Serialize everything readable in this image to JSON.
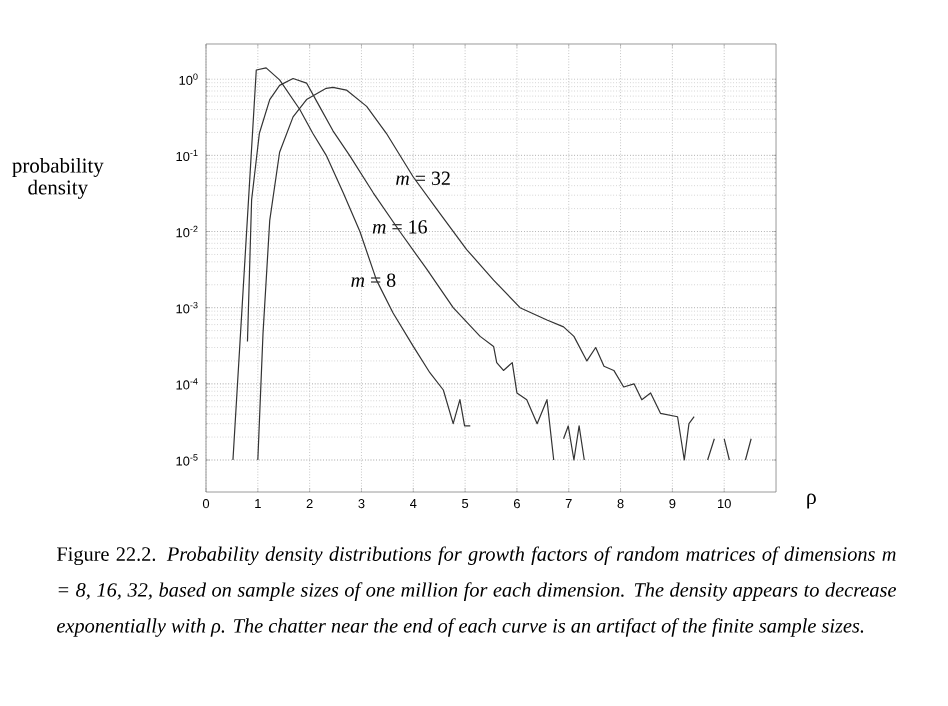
{
  "chart_data": {
    "type": "line",
    "xlabel": "ρ",
    "ylabel": "probability density",
    "log": "y",
    "grid": true,
    "xlim": [
      0,
      11
    ],
    "ylim": [
      3.8e-06,
      2.9
    ],
    "xticks": [
      0,
      1,
      2,
      3,
      4,
      5,
      6,
      7,
      8,
      9,
      10
    ],
    "yticks": [
      {
        "value": 1e-05,
        "label": "10$^{-5}$"
      },
      {
        "value": 0.0001,
        "label": "10$^{-4}$"
      },
      {
        "value": 0.001,
        "label": "10$^{-3}$"
      },
      {
        "value": 0.01,
        "label": "10$^{-2}$"
      },
      {
        "value": 0.1,
        "label": "10$^{-1}$"
      },
      {
        "value": 1,
        "label": "10$^{0}$"
      }
    ],
    "series": [
      {
        "color": "#333333",
        "x": [
          0.52,
          0.97,
          1.16,
          1.42,
          1.81,
          2.06,
          2.32,
          2.65,
          2.97,
          3.29,
          3.61,
          4.0,
          4.32,
          4.58,
          4.77,
          4.9,
          4.99,
          5.1
        ],
        "values": [
          1e-05,
          1.32,
          1.41,
          0.98,
          0.4,
          0.195,
          0.1,
          0.032,
          0.01,
          0.0023,
          0.00085,
          0.00031,
          0.00014,
          8.3e-05,
          3e-05,
          6.2e-05,
          2.8e-05,
          2.8e-05
        ]
      },
      {
        "color": "#333333",
        "x": [
          0.8,
          0.88,
          1.03,
          1.23,
          1.42,
          1.68,
          1.94,
          2.19,
          2.45,
          2.77,
          3.23,
          3.74,
          4.26,
          4.77,
          5.29,
          5.55,
          5.61,
          5.74,
          5.91,
          6.0,
          6.19,
          6.39,
          6.58,
          6.71,
          6.8,
          6.9,
          6.99,
          7.1,
          7.2,
          7.3
        ],
        "values": [
          0.00036,
          0.026,
          0.195,
          0.54,
          0.83,
          1.02,
          0.89,
          0.44,
          0.21,
          0.1,
          0.032,
          0.01,
          0.0032,
          0.001,
          0.00042,
          0.00031,
          0.00019,
          0.00015,
          0.00019,
          7.6e-05,
          6.2e-05,
          3e-05,
          6.2e-05,
          1e-05,
          null,
          1.9e-05,
          2.8e-05,
          1e-05,
          2.8e-05,
          1e-05
        ]
      },
      {
        "color": "#333333",
        "x": [
          1.0,
          1.1,
          1.23,
          1.42,
          1.68,
          1.94,
          2.32,
          2.45,
          2.71,
          3.1,
          3.48,
          4.0,
          4.52,
          5.03,
          5.55,
          6.06,
          6.58,
          6.9,
          7.1,
          7.35,
          7.52,
          7.68,
          7.87,
          8.06,
          8.26,
          8.41,
          8.58,
          8.77,
          9.1,
          9.23,
          9.32,
          9.42,
          9.55,
          9.68,
          9.81,
          9.9,
          10.0,
          10.1,
          10.3,
          10.41,
          10.52
        ],
        "values": [
          1e-05,
          0.00046,
          0.014,
          0.11,
          0.32,
          0.54,
          0.76,
          0.78,
          0.72,
          0.44,
          0.195,
          0.052,
          0.017,
          0.0058,
          0.0023,
          0.001,
          0.00069,
          0.00056,
          0.00042,
          0.0002,
          0.0003,
          0.00017,
          0.00015,
          9.1e-05,
          0.0001,
          6.2e-05,
          7.6e-05,
          4.1e-05,
          3.7e-05,
          1e-05,
          3e-05,
          3.7e-05,
          null,
          1e-05,
          1.9e-05,
          null,
          1.9e-05,
          1e-05,
          null,
          1e-05,
          1.9e-05
        ]
      }
    ],
    "annotations": [
      {
        "text": "*m* = 8",
        "x": 3.23,
        "y": 0.0023
      },
      {
        "text": "*m* = 16",
        "x": 3.74,
        "y": 0.0115
      },
      {
        "text": "*m* = 32",
        "x": 4.19,
        "y": 0.05
      },
      "Figure 22.2. *Probability density distributions for growth factors of random matrices of dimensions m = 8, 16, 32, based on sample sizes of one million for each dimension. The density appears to decrease exponentially with ρ. The chatter near the end of each curve is an artifact of the finite sample sizes.*"
    ]
  }
}
